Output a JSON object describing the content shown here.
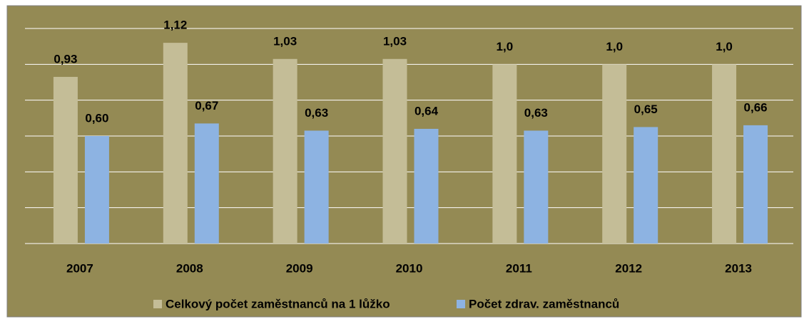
{
  "chart_data": {
    "type": "bar",
    "categories": [
      "2007",
      "2008",
      "2009",
      "2010",
      "2011",
      "2012",
      "2013"
    ],
    "series": [
      {
        "name": "Celkový počet zaměstnanců na 1 lůžko",
        "color": "#c4bd97",
        "values": [
          0.93,
          1.12,
          1.03,
          1.03,
          1.0,
          1.0,
          1.0
        ],
        "value_labels": [
          "0,93",
          "1,12",
          "1,03",
          "1,03",
          "1,0",
          "1,0",
          "1,0"
        ]
      },
      {
        "name": "Počet zdrav. zaměstnanců",
        "color": "#8db3e2",
        "values": [
          0.6,
          0.67,
          0.63,
          0.64,
          0.63,
          0.65,
          0.66
        ],
        "value_labels": [
          "0,60",
          "0,67",
          "0,63",
          "0,64",
          "0,63",
          "0,65",
          "0,66"
        ]
      }
    ],
    "ylim": [
      0,
      1.2
    ],
    "yticks": [
      0,
      0.2,
      0.4,
      0.6,
      0.8,
      1.0,
      1.2
    ],
    "grid": true,
    "legend": "bottom"
  }
}
